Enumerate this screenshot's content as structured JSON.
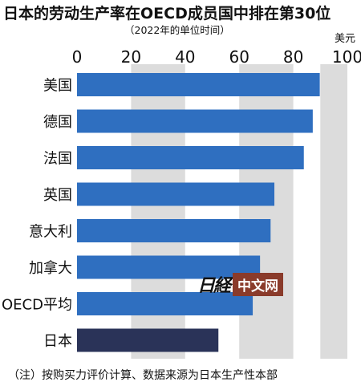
{
  "title": "日本的劳动生产率在OECD成员国中排在第30位",
  "subtitle": "（2022年的单位时间）",
  "footnote": "（注）按购买力评价计算、数据来源为日本生产性本部",
  "watermark": "中文网",
  "colors": {
    "bar": "#2f6fc0",
    "highlight": "#2a3358",
    "band": "#dcdcdc",
    "axis_text": "#111111"
  },
  "chart_data": {
    "type": "bar",
    "orientation": "horizontal",
    "categories": [
      "美国",
      "德国",
      "法国",
      "英国",
      "意大利",
      "加拿大",
      "OECD平均",
      "日本"
    ],
    "values": [
      89.8,
      87.2,
      83.9,
      73.0,
      71.6,
      67.7,
      65.0,
      52.3
    ],
    "highlight": "日本",
    "unit_label": "美元",
    "xlim": [
      0,
      100
    ],
    "ticks": [
      0,
      20,
      40,
      60,
      80,
      100
    ],
    "tick_position": "top",
    "grid_style": "alternating vertical bands"
  }
}
